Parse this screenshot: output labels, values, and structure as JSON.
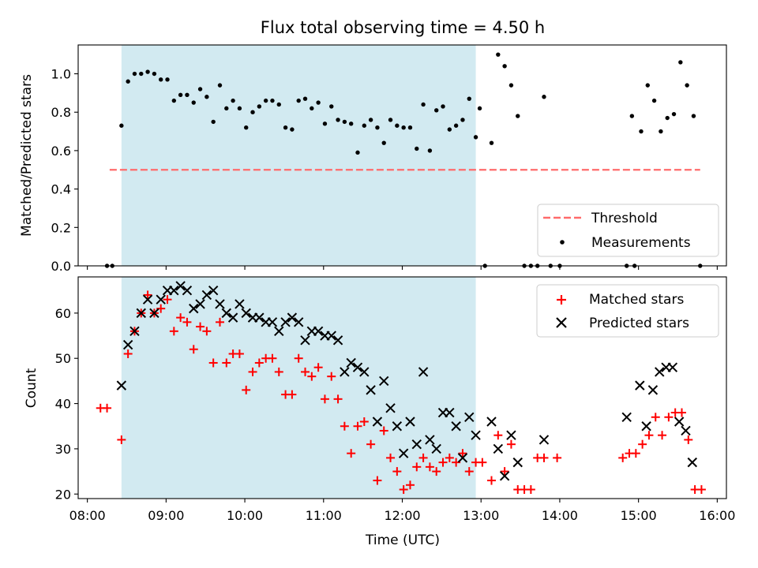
{
  "chart_data": [
    {
      "type": "scatter",
      "title": "Flux total observing time = 4.50 h",
      "xlabel": "",
      "ylabel": "Matched/Predicted stars",
      "xlim": [
        "07:53",
        "16:07"
      ],
      "ylim": [
        0,
        1.15
      ],
      "x_ticks": [
        "08:00",
        "09:00",
        "10:00",
        "11:00",
        "12:00",
        "13:00",
        "14:00",
        "15:00",
        "16:00"
      ],
      "y_ticks": [
        0.0,
        0.2,
        0.4,
        0.6,
        0.8,
        1.0
      ],
      "y_tick_labels": [
        "0.0",
        "0.2",
        "0.4",
        "0.6",
        "0.8",
        "1.0"
      ],
      "shaded_span": {
        "start": "08:26",
        "end": "12:56",
        "color": "#add8e6"
      },
      "threshold": {
        "y": 0.5,
        "from": "08:17",
        "to": "15:47",
        "color": "#ff6b6b",
        "style": "dashed"
      },
      "legend": {
        "position": "lower right",
        "entries": [
          "Threshold",
          "Measurements"
        ]
      },
      "series": [
        {
          "name": "Measurements",
          "marker": "dot",
          "color": "#000000",
          "points": [
            [
              "08:15",
              0.0
            ],
            [
              "08:19",
              0.0
            ],
            [
              "08:26",
              0.73
            ],
            [
              "08:31",
              0.96
            ],
            [
              "08:36",
              1.0
            ],
            [
              "08:41",
              1.0
            ],
            [
              "08:46",
              1.01
            ],
            [
              "08:51",
              1.0
            ],
            [
              "08:56",
              0.97
            ],
            [
              "09:01",
              0.97
            ],
            [
              "09:06",
              0.86
            ],
            [
              "09:11",
              0.89
            ],
            [
              "09:16",
              0.89
            ],
            [
              "09:21",
              0.85
            ],
            [
              "09:26",
              0.92
            ],
            [
              "09:31",
              0.88
            ],
            [
              "09:36",
              0.75
            ],
            [
              "09:41",
              0.94
            ],
            [
              "09:46",
              0.82
            ],
            [
              "09:51",
              0.86
            ],
            [
              "09:56",
              0.82
            ],
            [
              "10:01",
              0.72
            ],
            [
              "10:06",
              0.8
            ],
            [
              "10:11",
              0.83
            ],
            [
              "10:16",
              0.86
            ],
            [
              "10:21",
              0.86
            ],
            [
              "10:26",
              0.84
            ],
            [
              "10:31",
              0.72
            ],
            [
              "10:36",
              0.71
            ],
            [
              "10:41",
              0.86
            ],
            [
              "10:46",
              0.87
            ],
            [
              "10:51",
              0.82
            ],
            [
              "10:56",
              0.85
            ],
            [
              "11:01",
              0.74
            ],
            [
              "11:06",
              0.83
            ],
            [
              "11:11",
              0.76
            ],
            [
              "11:16",
              0.75
            ],
            [
              "11:21",
              0.74
            ],
            [
              "11:26",
              0.59
            ],
            [
              "11:31",
              0.73
            ],
            [
              "11:36",
              0.76
            ],
            [
              "11:41",
              0.72
            ],
            [
              "11:46",
              0.64
            ],
            [
              "11:51",
              0.76
            ],
            [
              "11:56",
              0.73
            ],
            [
              "12:01",
              0.72
            ],
            [
              "12:06",
              0.72
            ],
            [
              "12:11",
              0.61
            ],
            [
              "12:16",
              0.84
            ],
            [
              "12:21",
              0.6
            ],
            [
              "12:26",
              0.81
            ],
            [
              "12:31",
              0.83
            ],
            [
              "12:36",
              0.71
            ],
            [
              "12:41",
              0.73
            ],
            [
              "12:46",
              0.76
            ],
            [
              "12:51",
              0.87
            ],
            [
              "12:56",
              0.67
            ],
            [
              "12:59",
              0.82
            ],
            [
              "13:03",
              0.0
            ],
            [
              "13:08",
              0.64
            ],
            [
              "13:13",
              1.1
            ],
            [
              "13:18",
              1.04
            ],
            [
              "13:23",
              0.94
            ],
            [
              "13:28",
              0.78
            ],
            [
              "13:33",
              0.0
            ],
            [
              "13:38",
              0.0
            ],
            [
              "13:43",
              0.0
            ],
            [
              "13:48",
              0.88
            ],
            [
              "13:53",
              0.0
            ],
            [
              "14:00",
              0.0
            ],
            [
              "14:51",
              0.0
            ],
            [
              "14:55",
              0.78
            ],
            [
              "14:57",
              0.0
            ],
            [
              "15:02",
              0.7
            ],
            [
              "15:07",
              0.94
            ],
            [
              "15:12",
              0.86
            ],
            [
              "15:17",
              0.7
            ],
            [
              "15:22",
              0.77
            ],
            [
              "15:27",
              0.79
            ],
            [
              "15:32",
              1.06
            ],
            [
              "15:37",
              0.94
            ],
            [
              "15:42",
              0.78
            ],
            [
              "15:47",
              0.0
            ]
          ]
        }
      ]
    },
    {
      "type": "scatter",
      "xlabel": "Time (UTC)",
      "ylabel": "Count",
      "xlim": [
        "07:53",
        "16:07"
      ],
      "ylim": [
        19,
        68
      ],
      "x_ticks": [
        "08:00",
        "09:00",
        "10:00",
        "11:00",
        "12:00",
        "13:00",
        "14:00",
        "15:00",
        "16:00"
      ],
      "y_ticks": [
        20,
        30,
        40,
        50,
        60
      ],
      "shaded_span": {
        "start": "08:26",
        "end": "12:56",
        "color": "#add8e6"
      },
      "legend": {
        "position": "upper right",
        "entries": [
          "Matched stars",
          "Predicted stars"
        ]
      },
      "series": [
        {
          "name": "Matched stars",
          "marker": "plus",
          "color": "#ff0000",
          "points": [
            [
              "08:10",
              39
            ],
            [
              "08:15",
              39
            ],
            [
              "08:26",
              32
            ],
            [
              "08:31",
              51
            ],
            [
              "08:36",
              56
            ],
            [
              "08:41",
              60
            ],
            [
              "08:46",
              64
            ],
            [
              "08:51",
              60
            ],
            [
              "08:56",
              61
            ],
            [
              "09:01",
              63
            ],
            [
              "09:06",
              56
            ],
            [
              "09:11",
              59
            ],
            [
              "09:16",
              58
            ],
            [
              "09:21",
              52
            ],
            [
              "09:26",
              57
            ],
            [
              "09:31",
              56
            ],
            [
              "09:36",
              49
            ],
            [
              "09:41",
              58
            ],
            [
              "09:46",
              49
            ],
            [
              "09:51",
              51
            ],
            [
              "09:56",
              51
            ],
            [
              "10:01",
              43
            ],
            [
              "10:06",
              47
            ],
            [
              "10:11",
              49
            ],
            [
              "10:16",
              50
            ],
            [
              "10:21",
              50
            ],
            [
              "10:26",
              47
            ],
            [
              "10:31",
              42
            ],
            [
              "10:36",
              42
            ],
            [
              "10:41",
              50
            ],
            [
              "10:46",
              47
            ],
            [
              "10:51",
              46
            ],
            [
              "10:56",
              48
            ],
            [
              "11:01",
              41
            ],
            [
              "11:06",
              46
            ],
            [
              "11:11",
              41
            ],
            [
              "11:16",
              35
            ],
            [
              "11:21",
              29
            ],
            [
              "11:26",
              35
            ],
            [
              "11:31",
              36
            ],
            [
              "11:36",
              31
            ],
            [
              "11:41",
              23
            ],
            [
              "11:46",
              34
            ],
            [
              "11:51",
              28
            ],
            [
              "11:56",
              25
            ],
            [
              "12:01",
              21
            ],
            [
              "12:06",
              22
            ],
            [
              "12:11",
              26
            ],
            [
              "12:16",
              28
            ],
            [
              "12:21",
              26
            ],
            [
              "12:26",
              25
            ],
            [
              "12:31",
              27
            ],
            [
              "12:36",
              28
            ],
            [
              "12:41",
              27
            ],
            [
              "12:46",
              29
            ],
            [
              "12:51",
              25
            ],
            [
              "12:56",
              27
            ],
            [
              "13:01",
              27
            ],
            [
              "13:08",
              23
            ],
            [
              "13:13",
              33
            ],
            [
              "13:18",
              25
            ],
            [
              "13:23",
              31
            ],
            [
              "13:28",
              21
            ],
            [
              "13:33",
              21
            ],
            [
              "13:38",
              21
            ],
            [
              "13:43",
              28
            ],
            [
              "13:48",
              28
            ],
            [
              "13:58",
              28
            ],
            [
              "14:48",
              28
            ],
            [
              "14:53",
              29
            ],
            [
              "14:58",
              29
            ],
            [
              "15:03",
              31
            ],
            [
              "15:08",
              33
            ],
            [
              "15:13",
              37
            ],
            [
              "15:18",
              33
            ],
            [
              "15:23",
              37
            ],
            [
              "15:28",
              38
            ],
            [
              "15:33",
              38
            ],
            [
              "15:38",
              32
            ],
            [
              "15:43",
              21
            ],
            [
              "15:48",
              21
            ]
          ]
        },
        {
          "name": "Predicted stars",
          "marker": "x",
          "color": "#000000",
          "points": [
            [
              "08:26",
              44
            ],
            [
              "08:31",
              53
            ],
            [
              "08:36",
              56
            ],
            [
              "08:41",
              60
            ],
            [
              "08:46",
              63
            ],
            [
              "08:51",
              60
            ],
            [
              "08:56",
              63
            ],
            [
              "09:01",
              65
            ],
            [
              "09:06",
              65
            ],
            [
              "09:11",
              66
            ],
            [
              "09:16",
              65
            ],
            [
              "09:21",
              61
            ],
            [
              "09:26",
              62
            ],
            [
              "09:31",
              64
            ],
            [
              "09:36",
              65
            ],
            [
              "09:41",
              62
            ],
            [
              "09:46",
              60
            ],
            [
              "09:51",
              59
            ],
            [
              "09:56",
              62
            ],
            [
              "10:01",
              60
            ],
            [
              "10:06",
              59
            ],
            [
              "10:11",
              59
            ],
            [
              "10:16",
              58
            ],
            [
              "10:21",
              58
            ],
            [
              "10:26",
              56
            ],
            [
              "10:31",
              58
            ],
            [
              "10:36",
              59
            ],
            [
              "10:41",
              58
            ],
            [
              "10:46",
              54
            ],
            [
              "10:51",
              56
            ],
            [
              "10:56",
              56
            ],
            [
              "11:01",
              55
            ],
            [
              "11:06",
              55
            ],
            [
              "11:11",
              54
            ],
            [
              "11:16",
              47
            ],
            [
              "11:21",
              49
            ],
            [
              "11:26",
              48
            ],
            [
              "11:31",
              47
            ],
            [
              "11:36",
              43
            ],
            [
              "11:41",
              36
            ],
            [
              "11:46",
              45
            ],
            [
              "11:51",
              39
            ],
            [
              "11:56",
              35
            ],
            [
              "12:01",
              29
            ],
            [
              "12:06",
              36
            ],
            [
              "12:11",
              31
            ],
            [
              "12:16",
              47
            ],
            [
              "12:21",
              32
            ],
            [
              "12:26",
              30
            ],
            [
              "12:31",
              38
            ],
            [
              "12:36",
              38
            ],
            [
              "12:41",
              35
            ],
            [
              "12:46",
              28
            ],
            [
              "12:51",
              37
            ],
            [
              "12:56",
              33
            ],
            [
              "13:08",
              36
            ],
            [
              "13:13",
              30
            ],
            [
              "13:18",
              24
            ],
            [
              "13:23",
              33
            ],
            [
              "13:28",
              27
            ],
            [
              "13:48",
              32
            ],
            [
              "14:51",
              37
            ],
            [
              "15:01",
              44
            ],
            [
              "15:06",
              35
            ],
            [
              "15:11",
              43
            ],
            [
              "15:16",
              47
            ],
            [
              "15:21",
              48
            ],
            [
              "15:26",
              48
            ],
            [
              "15:31",
              36
            ],
            [
              "15:36",
              34
            ],
            [
              "15:41",
              27
            ]
          ]
        }
      ]
    }
  ]
}
